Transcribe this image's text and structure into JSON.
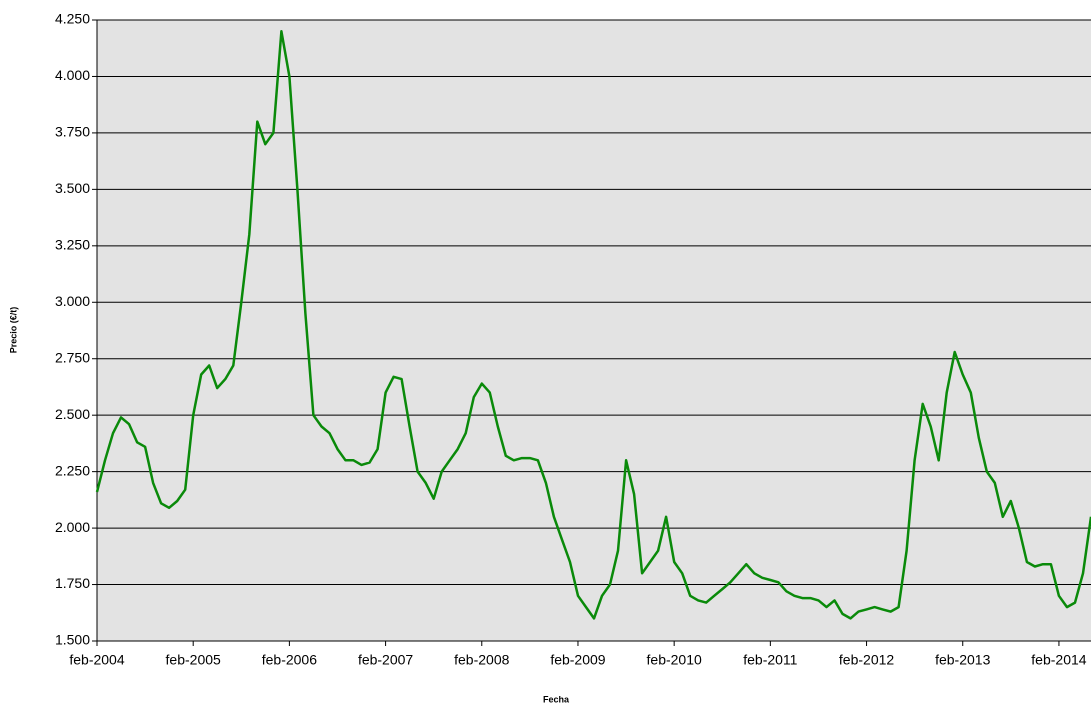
{
  "chart_data": {
    "type": "line",
    "x_label": "Fecha",
    "y_label": "Precio (€/t)",
    "x": [
      "2004-02",
      "2004-03",
      "2004-04",
      "2004-05",
      "2004-06",
      "2004-07",
      "2004-08",
      "2004-09",
      "2004-10",
      "2004-11",
      "2004-12",
      "2005-01",
      "2005-02",
      "2005-03",
      "2005-04",
      "2005-05",
      "2005-06",
      "2005-07",
      "2005-08",
      "2005-09",
      "2005-10",
      "2005-11",
      "2005-12",
      "2006-01",
      "2006-02",
      "2006-03",
      "2006-04",
      "2006-05",
      "2006-06",
      "2006-07",
      "2006-08",
      "2006-09",
      "2006-10",
      "2006-11",
      "2006-12",
      "2007-01",
      "2007-02",
      "2007-03",
      "2007-04",
      "2007-05",
      "2007-06",
      "2007-07",
      "2007-08",
      "2007-09",
      "2007-10",
      "2007-11",
      "2007-12",
      "2008-01",
      "2008-02",
      "2008-03",
      "2008-04",
      "2008-05",
      "2008-06",
      "2008-07",
      "2008-08",
      "2008-09",
      "2008-10",
      "2008-11",
      "2008-12",
      "2009-01",
      "2009-02",
      "2009-03",
      "2009-04",
      "2009-05",
      "2009-06",
      "2009-07",
      "2009-08",
      "2009-09",
      "2009-10",
      "2009-11",
      "2009-12",
      "2010-01",
      "2010-02",
      "2010-03",
      "2010-04",
      "2010-05",
      "2010-06",
      "2010-07",
      "2010-08",
      "2010-09",
      "2010-10",
      "2010-11",
      "2010-12",
      "2011-01",
      "2011-02",
      "2011-03",
      "2011-04",
      "2011-05",
      "2011-06",
      "2011-07",
      "2011-08",
      "2011-09",
      "2011-10",
      "2011-11",
      "2011-12",
      "2012-01",
      "2012-02",
      "2012-03",
      "2012-04",
      "2012-05",
      "2012-06",
      "2012-07",
      "2012-08",
      "2012-09",
      "2012-10",
      "2012-11",
      "2012-12",
      "2013-01",
      "2013-02",
      "2013-03",
      "2013-04",
      "2013-05",
      "2013-06",
      "2013-07",
      "2013-08",
      "2013-09",
      "2013-10",
      "2013-11",
      "2013-12",
      "2014-01",
      "2014-02",
      "2014-03",
      "2014-04",
      "2014-05",
      "2014-06"
    ],
    "values": [
      2160,
      2300,
      2420,
      2490,
      2460,
      2380,
      2360,
      2200,
      2110,
      2090,
      2120,
      2170,
      2500,
      2680,
      2720,
      2620,
      2660,
      2720,
      3000,
      3300,
      3800,
      3700,
      3750,
      4200,
      4000,
      3500,
      2950,
      2500,
      2450,
      2420,
      2350,
      2300,
      2300,
      2280,
      2290,
      2350,
      2600,
      2670,
      2660,
      2450,
      2250,
      2200,
      2130,
      2250,
      2300,
      2350,
      2420,
      2580,
      2640,
      2600,
      2450,
      2320,
      2300,
      2310,
      2310,
      2300,
      2200,
      2050,
      1950,
      1850,
      1700,
      1650,
      1600,
      1700,
      1750,
      1900,
      2300,
      2150,
      1800,
      1850,
      1900,
      2050,
      1850,
      1800,
      1700,
      1680,
      1670,
      1700,
      1730,
      1760,
      1800,
      1840,
      1800,
      1780,
      1770,
      1760,
      1720,
      1700,
      1690,
      1690,
      1680,
      1650,
      1680,
      1620,
      1600,
      1630,
      1640,
      1650,
      1640,
      1630,
      1650,
      1900,
      2300,
      2550,
      2450,
      2300,
      2600,
      2780,
      2680,
      2600,
      2400,
      2250,
      2200,
      2050,
      2120,
      2000,
      1850,
      1830,
      1840,
      1840,
      1700,
      1650,
      1670,
      1800,
      2050
    ],
    "color": "#0a8a0a",
    "xlim": [
      "2004-02",
      "2014-06"
    ],
    "xticks": [
      {
        "value": "2004-02",
        "label": "feb-2004"
      },
      {
        "value": "2005-02",
        "label": "feb-2005"
      },
      {
        "value": "2006-02",
        "label": "feb-2006"
      },
      {
        "value": "2007-02",
        "label": "feb-2007"
      },
      {
        "value": "2008-02",
        "label": "feb-2008"
      },
      {
        "value": "2009-02",
        "label": "feb-2009"
      },
      {
        "value": "2010-02",
        "label": "feb-2010"
      },
      {
        "value": "2011-02",
        "label": "feb-2011"
      },
      {
        "value": "2012-02",
        "label": "feb-2012"
      },
      {
        "value": "2013-02",
        "label": "feb-2013"
      },
      {
        "value": "2014-02",
        "label": "feb-2014"
      }
    ],
    "ylim": [
      1500,
      4250
    ],
    "yticks": [
      {
        "value": 1500,
        "label": "1.500"
      },
      {
        "value": 1750,
        "label": "1.750"
      },
      {
        "value": 2000,
        "label": "2.000"
      },
      {
        "value": 2250,
        "label": "2.250"
      },
      {
        "value": 2500,
        "label": "2.500"
      },
      {
        "value": 2750,
        "label": "2.750"
      },
      {
        "value": 3000,
        "label": "3.000"
      },
      {
        "value": 3250,
        "label": "3.250"
      },
      {
        "value": 3500,
        "label": "3.500"
      },
      {
        "value": 3750,
        "label": "3.750"
      },
      {
        "value": 4000,
        "label": "4.000"
      },
      {
        "value": 4250,
        "label": "4.250"
      }
    ],
    "grid": true
  }
}
